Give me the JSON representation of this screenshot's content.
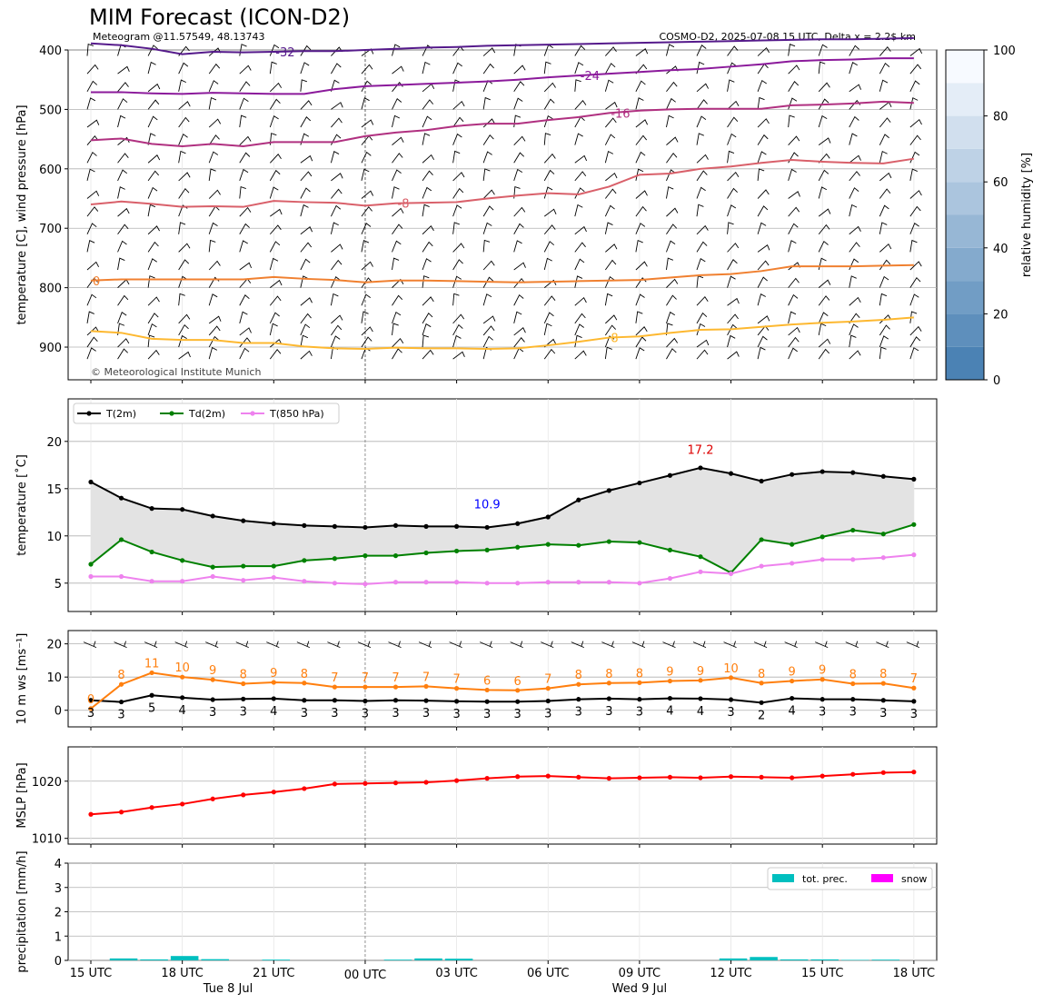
{
  "header": {
    "title": "MIM Forecast (ICON-D2)",
    "subtitle_left": "Meteogram @11.57549, 48.13743",
    "subtitle_right": "COSMO-D2, 2025-07-08 15 UTC, Delta x = 2.2$ km",
    "copyright": "© Meteorological Institute Munich"
  },
  "colors": {
    "t2m": "#000000",
    "td2m": "#008000",
    "t850": "#ee82ee",
    "mslp": "#ff0000",
    "gust": "#ff7f0e",
    "precip": "#00bfbf",
    "snow": "#ff00ff",
    "min_label": "#0000ff",
    "max_label": "#dd0000"
  },
  "time_axis": {
    "ticks": [
      "15 UTC",
      "18 UTC",
      "21 UTC",
      "00 UTC",
      "03 UTC",
      "06 UTC",
      "09 UTC",
      "12 UTC",
      "15 UTC",
      "18 UTC"
    ],
    "day_labels": [
      {
        "label": "Tue 8 Jul",
        "at_hour": 4.5
      },
      {
        "label": "Wed 9 Jul",
        "at_hour": 18
      }
    ]
  },
  "chart_data": [
    {
      "id": "sounding",
      "type": "line",
      "ylabel": "temperature [C], wind pressure [hPa]",
      "yticks": [
        400,
        500,
        600,
        700,
        800,
        900
      ],
      "ylim": [
        955,
        400
      ],
      "colorbar": {
        "label": "relative humidity [%]",
        "ticks": [
          0,
          20,
          40,
          60,
          80,
          100
        ]
      },
      "isotherms": [
        {
          "label": "-32",
          "color": "#551a8b",
          "values": [
            389,
            392,
            398,
            407,
            403,
            404,
            403,
            402,
            402,
            400,
            398,
            396,
            395,
            393,
            392,
            391,
            390,
            389,
            388,
            387,
            386,
            385,
            384,
            383,
            382,
            382,
            381,
            380
          ]
        },
        {
          "label": "-24",
          "color": "#8b1a9b",
          "values": [
            471,
            471,
            473,
            474,
            472,
            473,
            474,
            474,
            466,
            461,
            459,
            457,
            455,
            453,
            450,
            446,
            443,
            440,
            437,
            434,
            432,
            428,
            424,
            419,
            417,
            416,
            414,
            414
          ]
        },
        {
          "label": "-16",
          "color": "#b03080",
          "values": [
            552,
            549,
            558,
            562,
            558,
            562,
            555,
            555,
            555,
            545,
            539,
            535,
            528,
            524,
            524,
            518,
            513,
            506,
            502,
            500,
            499,
            499,
            499,
            493,
            492,
            490,
            487,
            489
          ]
        },
        {
          "label": "-8",
          "color": "#d9606a",
          "values": [
            660,
            655,
            659,
            664,
            663,
            664,
            654,
            656,
            657,
            662,
            658,
            657,
            656,
            650,
            645,
            641,
            643,
            630,
            610,
            608,
            600,
            596,
            590,
            585,
            588,
            590,
            591,
            583
          ]
        },
        {
          "label": "0",
          "color": "#f08030",
          "values": [
            788,
            786,
            786,
            786,
            786,
            786,
            782,
            785,
            787,
            791,
            788,
            788,
            789,
            790,
            791,
            790,
            789,
            788,
            787,
            783,
            779,
            777,
            772,
            764,
            764,
            764,
            763,
            762
          ]
        },
        {
          "label": "8",
          "color": "#fdb830",
          "values": [
            873,
            876,
            886,
            888,
            888,
            893,
            893,
            899,
            902,
            903,
            901,
            902,
            902,
            903,
            902,
            897,
            891,
            884,
            882,
            876,
            871,
            870,
            866,
            862,
            859,
            857,
            854,
            850
          ]
        }
      ]
    },
    {
      "id": "temperature",
      "type": "line",
      "ylabel": "temperature [$^\\circ$C]",
      "yticks": [
        5,
        10,
        15,
        20
      ],
      "ylim": [
        2,
        24.5
      ],
      "legend": "top-left",
      "annotations": [
        {
          "text": "10.9",
          "x": 13,
          "y": 12.9,
          "role": "min"
        },
        {
          "text": "17.2",
          "x": 20,
          "y": 18.7,
          "role": "max"
        }
      ],
      "series": [
        {
          "name": "T(2m)",
          "values": [
            15.7,
            14.0,
            12.9,
            12.8,
            12.1,
            11.6,
            11.3,
            11.1,
            11.0,
            10.9,
            11.1,
            11.0,
            11.0,
            10.9,
            11.3,
            12.0,
            13.8,
            14.8,
            15.6,
            16.4,
            17.2,
            16.6,
            15.8,
            16.5,
            16.8,
            16.7,
            16.3,
            16.0
          ]
        },
        {
          "name": "Td(2m)",
          "values": [
            7.0,
            9.6,
            8.3,
            7.4,
            6.7,
            6.8,
            6.8,
            7.4,
            7.6,
            7.9,
            7.9,
            8.2,
            8.4,
            8.5,
            8.8,
            9.1,
            9.0,
            9.4,
            9.3,
            8.5,
            7.8,
            6.1,
            9.6,
            9.1,
            9.9,
            10.6,
            10.2,
            11.2
          ]
        },
        {
          "name": "T(850 hPa)",
          "values": [
            5.7,
            5.7,
            5.2,
            5.2,
            5.7,
            5.3,
            5.6,
            5.2,
            5.0,
            4.9,
            5.1,
            5.1,
            5.1,
            5.0,
            5.0,
            5.1,
            5.1,
            5.1,
            5.0,
            5.5,
            6.2,
            6.0,
            6.8,
            7.1,
            7.5,
            7.5,
            7.7,
            8.0
          ]
        }
      ]
    },
    {
      "id": "wind",
      "type": "line",
      "ylabel": "10 m ws [ms$^{-1}$]",
      "yticks": [
        0,
        10,
        20
      ],
      "ylim": [
        -5,
        24
      ],
      "series": [
        {
          "name": "wind speed",
          "values": [
            3,
            3,
            5,
            4,
            3,
            3,
            4,
            3,
            3,
            3,
            3,
            3,
            3,
            3,
            3,
            3,
            3,
            3,
            3,
            4,
            4,
            3,
            2,
            4,
            3,
            3,
            3,
            3
          ],
          "line_values": [
            3,
            2.5,
            4.5,
            3.8,
            3.2,
            3.4,
            3.5,
            3.0,
            3.0,
            2.8,
            3.0,
            2.9,
            2.7,
            2.6,
            2.6,
            2.8,
            3.3,
            3.5,
            3.3,
            3.6,
            3.5,
            3.2,
            2.3,
            3.6,
            3.3,
            3.3,
            3.0,
            2.7
          ]
        },
        {
          "name": "gust",
          "values": [
            0,
            8,
            11,
            10,
            9,
            8,
            9,
            8,
            7,
            7,
            7,
            7,
            7,
            6,
            6,
            7,
            8,
            8,
            8,
            9,
            9,
            10,
            8,
            9,
            9,
            8,
            8,
            7
          ],
          "line_values": [
            0.5,
            7.8,
            11.3,
            10.0,
            9.2,
            8.0,
            8.4,
            8.2,
            7.0,
            7.0,
            7.0,
            7.2,
            6.6,
            6.1,
            6.0,
            6.6,
            7.8,
            8.2,
            8.3,
            8.8,
            9.0,
            9.8,
            8.2,
            8.8,
            9.3,
            8.0,
            8.1,
            6.7
          ]
        }
      ]
    },
    {
      "id": "mslp",
      "type": "line",
      "ylabel": "MSLP [hPa]",
      "yticks": [
        1010,
        1020
      ],
      "ylim": [
        1009,
        1026
      ],
      "series": [
        {
          "name": "MSLP",
          "values": [
            1014.2,
            1014.6,
            1015.4,
            1016.0,
            1016.9,
            1017.6,
            1018.1,
            1018.7,
            1019.5,
            1019.6,
            1019.7,
            1019.8,
            1020.1,
            1020.5,
            1020.8,
            1020.9,
            1020.7,
            1020.5,
            1020.6,
            1020.7,
            1020.6,
            1020.8,
            1020.7,
            1020.6,
            1020.9,
            1021.2,
            1021.5,
            1021.6
          ]
        }
      ]
    },
    {
      "id": "precipitation",
      "type": "bar",
      "ylabel": "precipitation [mm/h]",
      "yticks": [
        0,
        1,
        2,
        3,
        4
      ],
      "ylim": [
        0,
        4
      ],
      "legend": "top-right",
      "series": [
        {
          "name": "tot. prec.",
          "values": [
            0,
            0.08,
            0.04,
            0.18,
            0.05,
            0,
            0.03,
            0,
            0,
            0,
            0.03,
            0.08,
            0.07,
            0,
            0,
            0,
            0,
            0,
            0,
            0,
            0,
            0.08,
            0.14,
            0.04,
            0.04,
            0.02,
            0.03,
            0
          ]
        },
        {
          "name": "snow",
          "values": [
            0,
            0,
            0,
            0,
            0,
            0,
            0,
            0,
            0,
            0,
            0,
            0,
            0,
            0,
            0,
            0,
            0,
            0,
            0,
            0,
            0,
            0,
            0,
            0,
            0,
            0,
            0,
            0
          ]
        }
      ]
    }
  ]
}
